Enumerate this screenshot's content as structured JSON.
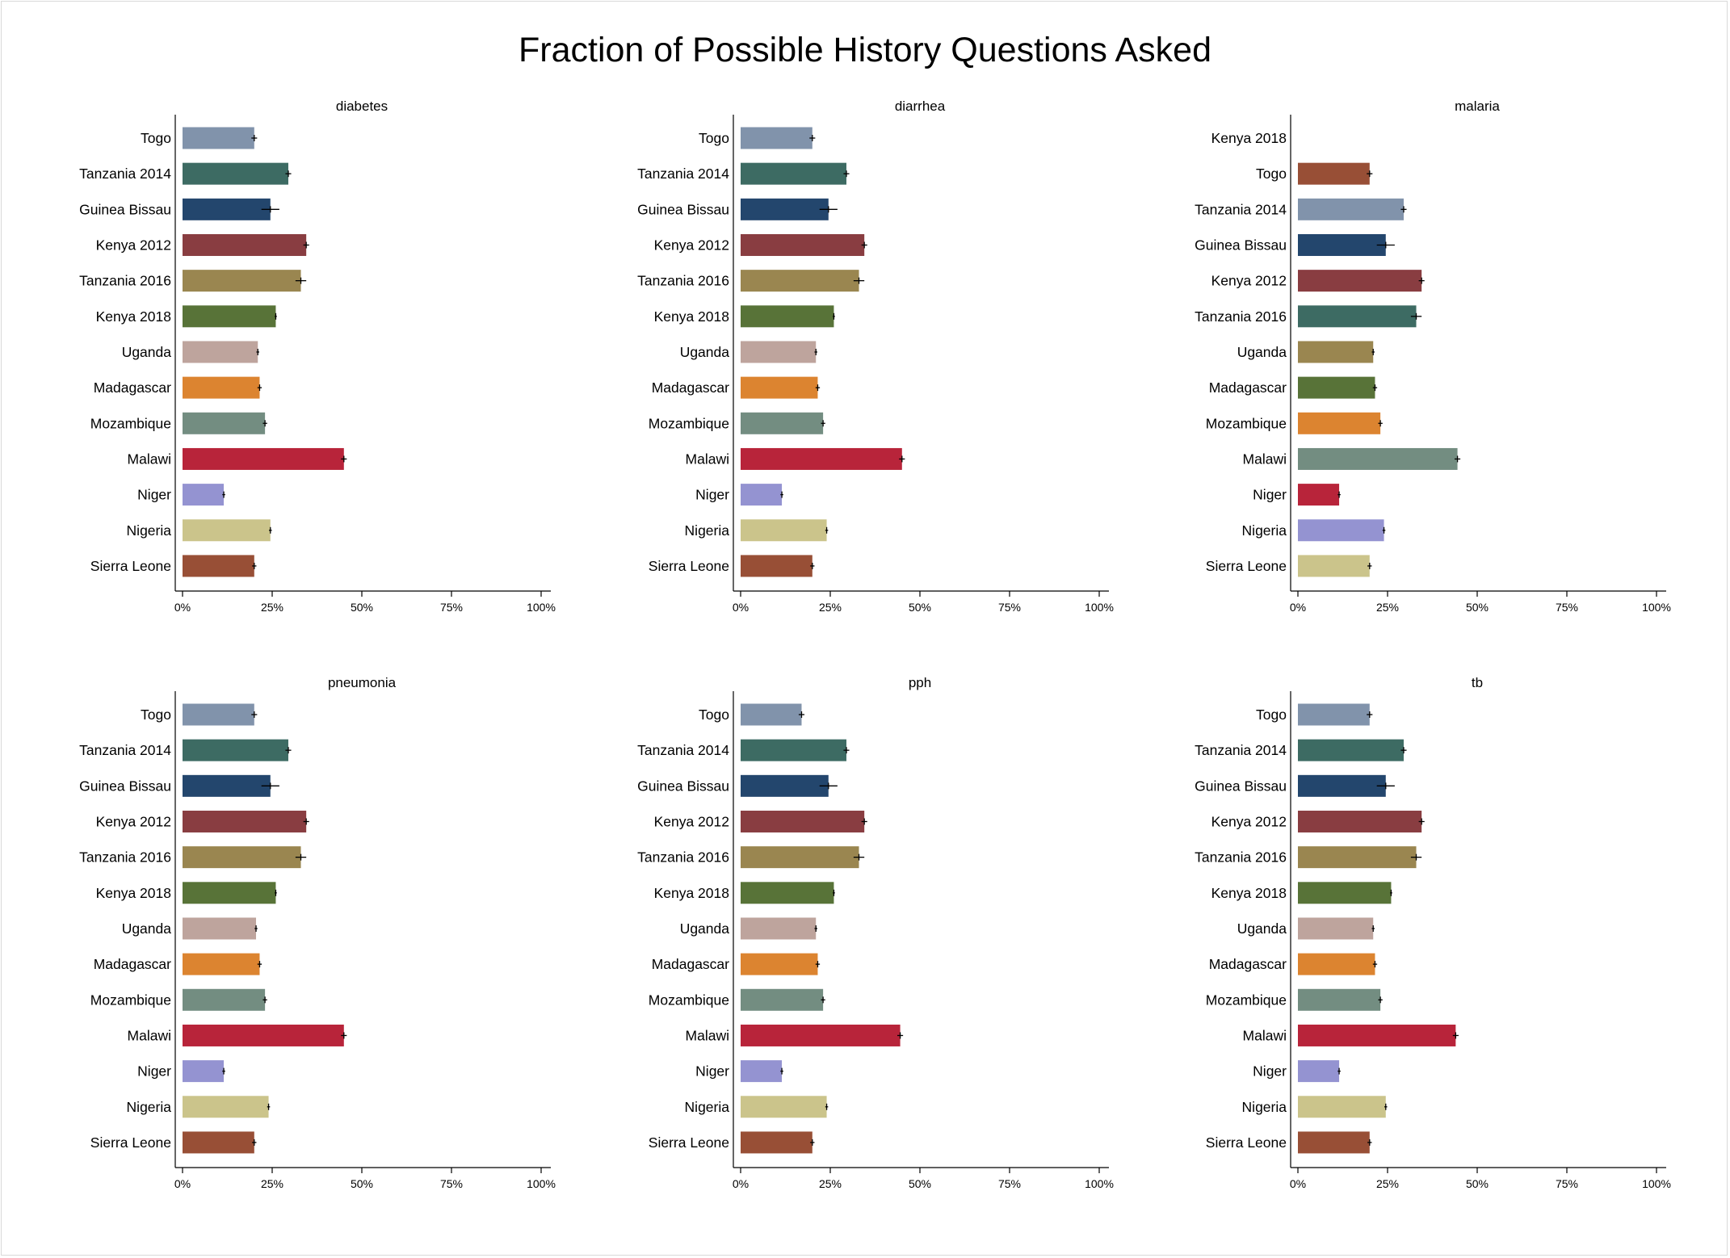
{
  "title": "Fraction of Possible History Questions Asked",
  "chart_data": [
    {
      "type": "bar",
      "title": "diabetes",
      "orientation": "horizontal",
      "xlim": [
        0,
        1
      ],
      "x_ticks": [
        "0%",
        "25%",
        "50%",
        "75%",
        "100%"
      ],
      "categories": [
        "Togo",
        "Tanzania 2014",
        "Guinea Bissau",
        "Kenya 2012",
        "Tanzania 2016",
        "Kenya 2018",
        "Uganda",
        "Madagascar",
        "Mozambique",
        "Malawi",
        "Niger",
        "Nigeria",
        "Sierra Leone"
      ],
      "values": [
        0.2,
        0.295,
        0.245,
        0.345,
        0.33,
        0.26,
        0.21,
        0.215,
        0.23,
        0.45,
        0.115,
        0.245,
        0.2
      ],
      "errors": [
        0.008,
        0.008,
        0.025,
        0.008,
        0.015,
        0.003,
        0.004,
        0.006,
        0.006,
        0.008,
        0.004,
        0.004,
        0.006
      ],
      "colors": [
        "#8193ab",
        "#3d6b63",
        "#23466d",
        "#893d41",
        "#9a8650",
        "#587338",
        "#bea49d",
        "#dc8430",
        "#738d81",
        "#b8243a",
        "#9493d1",
        "#cbc48b",
        "#984f36"
      ]
    },
    {
      "type": "bar",
      "title": "diarrhea",
      "orientation": "horizontal",
      "xlim": [
        0,
        1
      ],
      "x_ticks": [
        "0%",
        "25%",
        "50%",
        "75%",
        "100%"
      ],
      "categories": [
        "Togo",
        "Tanzania 2014",
        "Guinea Bissau",
        "Kenya 2012",
        "Tanzania 2016",
        "Kenya 2018",
        "Uganda",
        "Madagascar",
        "Mozambique",
        "Malawi",
        "Niger",
        "Nigeria",
        "Sierra Leone"
      ],
      "values": [
        0.2,
        0.295,
        0.245,
        0.345,
        0.33,
        0.26,
        0.21,
        0.215,
        0.23,
        0.45,
        0.115,
        0.24,
        0.2
      ],
      "errors": [
        0.008,
        0.008,
        0.025,
        0.008,
        0.015,
        0.003,
        0.004,
        0.006,
        0.006,
        0.008,
        0.004,
        0.004,
        0.006
      ],
      "colors": [
        "#8193ab",
        "#3d6b63",
        "#23466d",
        "#893d41",
        "#9a8650",
        "#587338",
        "#bea49d",
        "#dc8430",
        "#738d81",
        "#b8243a",
        "#9493d1",
        "#cbc48b",
        "#984f36"
      ]
    },
    {
      "type": "bar",
      "title": "malaria",
      "orientation": "horizontal",
      "xlim": [
        0,
        1
      ],
      "x_ticks": [
        "0%",
        "25%",
        "50%",
        "75%",
        "100%"
      ],
      "categories": [
        "Kenya 2018",
        "Togo",
        "Tanzania 2014",
        "Guinea Bissau",
        "Kenya 2012",
        "Tanzania 2016",
        "Uganda",
        "Madagascar",
        "Mozambique",
        "Malawi",
        "Niger",
        "Nigeria",
        "Sierra Leone"
      ],
      "values": [
        null,
        0.2,
        0.295,
        0.245,
        0.345,
        0.33,
        0.21,
        0.215,
        0.23,
        0.445,
        0.115,
        0.24,
        0.2
      ],
      "errors": [
        null,
        0.008,
        0.008,
        0.025,
        0.008,
        0.015,
        0.004,
        0.006,
        0.006,
        0.008,
        0.004,
        0.004,
        0.006
      ],
      "colors": [
        "#ffffff",
        "#984f36",
        "#8193ab",
        "#23466d",
        "#893d41",
        "#3d6b63",
        "#9a8650",
        "#587338",
        "#dc8430",
        "#738d81",
        "#b8243a",
        "#9493d1",
        "#cbc48b"
      ]
    },
    {
      "type": "bar",
      "title": "pneumonia",
      "orientation": "horizontal",
      "xlim": [
        0,
        1
      ],
      "x_ticks": [
        "0%",
        "25%",
        "50%",
        "75%",
        "100%"
      ],
      "categories": [
        "Togo",
        "Tanzania 2014",
        "Guinea Bissau",
        "Kenya 2012",
        "Tanzania 2016",
        "Kenya 2018",
        "Uganda",
        "Madagascar",
        "Mozambique",
        "Malawi",
        "Niger",
        "Nigeria",
        "Sierra Leone"
      ],
      "values": [
        0.2,
        0.295,
        0.245,
        0.345,
        0.33,
        0.26,
        0.205,
        0.215,
        0.23,
        0.45,
        0.115,
        0.24,
        0.2
      ],
      "errors": [
        0.008,
        0.008,
        0.025,
        0.008,
        0.015,
        0.003,
        0.004,
        0.006,
        0.006,
        0.008,
        0.004,
        0.004,
        0.006
      ],
      "colors": [
        "#8193ab",
        "#3d6b63",
        "#23466d",
        "#893d41",
        "#9a8650",
        "#587338",
        "#bea49d",
        "#dc8430",
        "#738d81",
        "#b8243a",
        "#9493d1",
        "#cbc48b",
        "#984f36"
      ]
    },
    {
      "type": "bar",
      "title": "pph",
      "orientation": "horizontal",
      "xlim": [
        0,
        1
      ],
      "x_ticks": [
        "0%",
        "25%",
        "50%",
        "75%",
        "100%"
      ],
      "categories": [
        "Togo",
        "Tanzania 2014",
        "Guinea Bissau",
        "Kenya 2012",
        "Tanzania 2016",
        "Kenya 2018",
        "Uganda",
        "Madagascar",
        "Mozambique",
        "Malawi",
        "Niger",
        "Nigeria",
        "Sierra Leone"
      ],
      "values": [
        0.17,
        0.295,
        0.245,
        0.345,
        0.33,
        0.26,
        0.21,
        0.215,
        0.23,
        0.445,
        0.115,
        0.24,
        0.2
      ],
      "errors": [
        0.008,
        0.008,
        0.025,
        0.008,
        0.015,
        0.003,
        0.004,
        0.006,
        0.006,
        0.008,
        0.004,
        0.004,
        0.006
      ],
      "colors": [
        "#8193ab",
        "#3d6b63",
        "#23466d",
        "#893d41",
        "#9a8650",
        "#587338",
        "#bea49d",
        "#dc8430",
        "#738d81",
        "#b8243a",
        "#9493d1",
        "#cbc48b",
        "#984f36"
      ]
    },
    {
      "type": "bar",
      "title": "tb",
      "orientation": "horizontal",
      "xlim": [
        0,
        1
      ],
      "x_ticks": [
        "0%",
        "25%",
        "50%",
        "75%",
        "100%"
      ],
      "categories": [
        "Togo",
        "Tanzania 2014",
        "Guinea Bissau",
        "Kenya 2012",
        "Tanzania 2016",
        "Kenya 2018",
        "Uganda",
        "Madagascar",
        "Mozambique",
        "Malawi",
        "Niger",
        "Nigeria",
        "Sierra Leone"
      ],
      "values": [
        0.2,
        0.295,
        0.245,
        0.345,
        0.33,
        0.26,
        0.21,
        0.215,
        0.23,
        0.44,
        0.115,
        0.245,
        0.2
      ],
      "errors": [
        0.008,
        0.008,
        0.025,
        0.008,
        0.015,
        0.003,
        0.004,
        0.006,
        0.006,
        0.008,
        0.004,
        0.004,
        0.006
      ],
      "colors": [
        "#8193ab",
        "#3d6b63",
        "#23466d",
        "#893d41",
        "#9a8650",
        "#587338",
        "#bea49d",
        "#dc8430",
        "#738d81",
        "#b8243a",
        "#9493d1",
        "#cbc48b",
        "#984f36"
      ]
    }
  ]
}
